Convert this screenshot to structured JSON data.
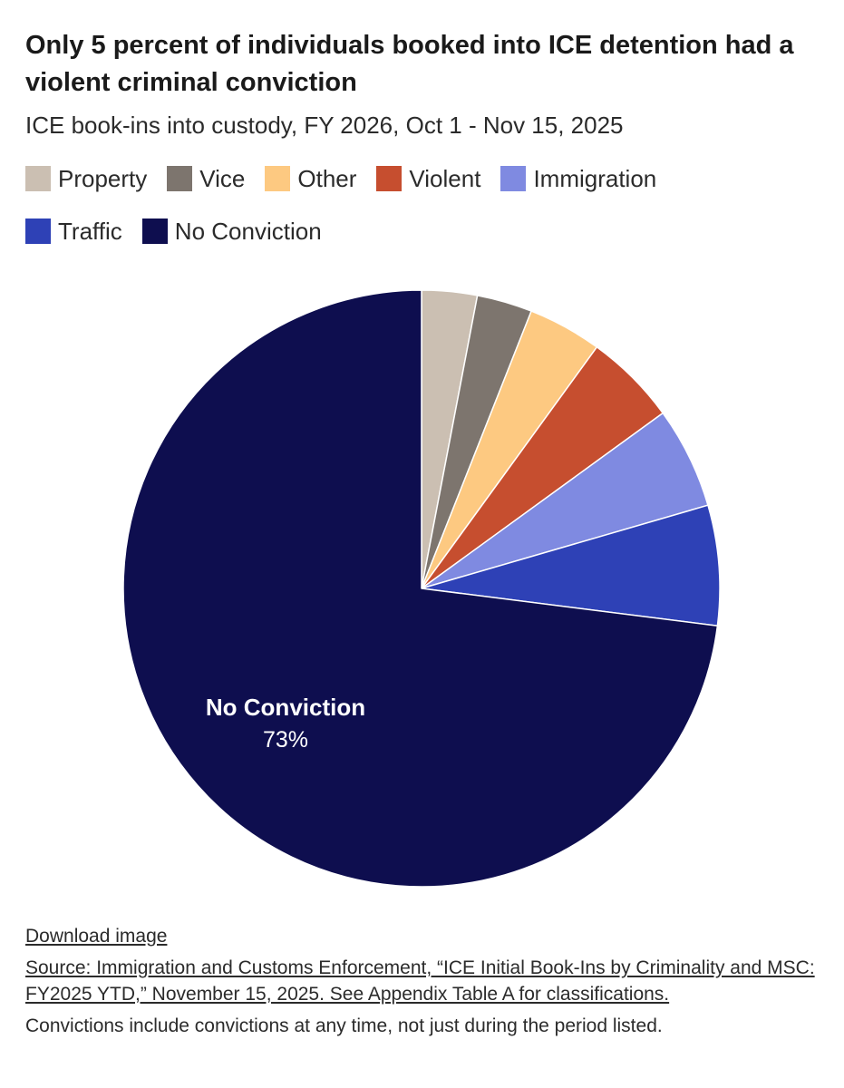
{
  "title": "Only 5 percent of individuals booked into ICE detention had a violent criminal conviction",
  "subtitle": "ICE book-ins into custody, FY 2026, Oct 1 - Nov 15, 2025",
  "chart_data": {
    "type": "pie",
    "start_angle": "12 o'clock",
    "direction": "clockwise",
    "slices": [
      {
        "name": "Property",
        "value": 3,
        "color": "#cbbfb2"
      },
      {
        "name": "Vice",
        "value": 3,
        "color": "#7d756e"
      },
      {
        "name": "Other",
        "value": 4,
        "color": "#fdc981"
      },
      {
        "name": "Violent",
        "value": 5,
        "color": "#c64e2f"
      },
      {
        "name": "Immigration",
        "value": 5.5,
        "color": "#7f8ae1"
      },
      {
        "name": "Traffic",
        "value": 6.5,
        "color": "#2e41b6"
      },
      {
        "name": "No Conviction",
        "value": 73,
        "color": "#0e0e4f"
      }
    ],
    "annotation": {
      "slice": "No Conviction",
      "label": "No Conviction",
      "value_label": "73%"
    },
    "legend_position": "top"
  },
  "footer": {
    "download": "Download image",
    "source": "Source: Immigration and Customs Enforcement, “ICE Initial Book-Ins by Criminality and MSC: FY2025 YTD,” November 15, 2025. See Appendix Table A for classifications.",
    "note": "Convictions include convictions at any time, not just during the period listed."
  }
}
